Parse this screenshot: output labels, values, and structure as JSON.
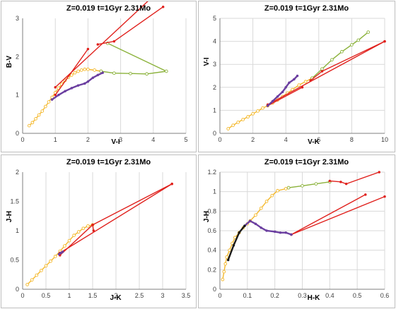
{
  "colors": {
    "grid": "#d9d9d9",
    "axis": "#7f7f7f",
    "red": "#e0211d",
    "green": "#8bb23b",
    "yellow": "#f4b82b",
    "purple": "#6b3fa0",
    "black": "#1a1a1a"
  },
  "chart_data": [
    {
      "type": "scatter",
      "title": "Z=0.019  t=1Gyr  2.31Mo",
      "xlabel": "V-I",
      "ylabel": "B-V",
      "xlim": [
        0,
        5
      ],
      "ylim": [
        0,
        3
      ],
      "xticks": [
        0,
        1,
        2,
        3,
        4,
        5
      ],
      "yticks": [
        0,
        1,
        2,
        3
      ],
      "grid": "vertical",
      "series": [
        {
          "color": "yellow",
          "markers": true,
          "points": [
            [
              0.2,
              0.2
            ],
            [
              0.3,
              0.28
            ],
            [
              0.4,
              0.38
            ],
            [
              0.5,
              0.48
            ],
            [
              0.6,
              0.58
            ],
            [
              0.7,
              0.7
            ],
            [
              0.8,
              0.82
            ],
            [
              0.9,
              0.94
            ],
            [
              1.0,
              1.06
            ],
            [
              1.1,
              1.18
            ],
            [
              1.2,
              1.28
            ],
            [
              1.3,
              1.38
            ],
            [
              1.4,
              1.46
            ],
            [
              1.5,
              1.52
            ],
            [
              1.6,
              1.58
            ],
            [
              1.7,
              1.62
            ],
            [
              1.8,
              1.65
            ],
            [
              1.9,
              1.67
            ],
            [
              2.0,
              1.67
            ],
            [
              2.2,
              1.65
            ],
            [
              2.4,
              1.62
            ]
          ]
        },
        {
          "color": "green",
          "markers": true,
          "points": [
            [
              2.4,
              1.62
            ],
            [
              2.8,
              1.57
            ],
            [
              3.3,
              1.56
            ],
            [
              3.8,
              1.55
            ],
            [
              4.4,
              1.62
            ],
            [
              2.6,
              2.35
            ]
          ]
        },
        {
          "color": "red",
          "markers": false,
          "points": [
            [
              1.0,
              1.0
            ],
            [
              2.0,
              2.2
            ]
          ]
        },
        {
          "color": "red",
          "markers": false,
          "points": [
            [
              1.0,
              1.2
            ],
            [
              3.9,
              3.5
            ]
          ]
        },
        {
          "color": "red",
          "markers": false,
          "points": [
            [
              2.3,
              2.32
            ],
            [
              2.8,
              2.4
            ],
            [
              4.3,
              3.3
            ]
          ]
        },
        {
          "color": "purple",
          "markers": false,
          "points": [
            [
              0.9,
              0.88
            ],
            [
              1.1,
              1.0
            ],
            [
              1.3,
              1.1
            ],
            [
              1.5,
              1.18
            ],
            [
              1.7,
              1.25
            ],
            [
              1.9,
              1.3
            ],
            [
              2.0,
              1.35
            ],
            [
              2.15,
              1.45
            ],
            [
              2.3,
              1.52
            ],
            [
              2.45,
              1.58
            ]
          ]
        }
      ]
    },
    {
      "type": "scatter",
      "title": "Z=0.019  t=1Gyr  2.31Mo",
      "xlabel": "V-K",
      "ylabel": "V-I",
      "xlim": [
        0,
        10
      ],
      "ylim": [
        0,
        5
      ],
      "xticks": [
        0,
        2,
        4,
        6,
        8,
        10
      ],
      "yticks": [
        0,
        1,
        2,
        3,
        4,
        5
      ],
      "grid": "both",
      "series": [
        {
          "color": "yellow",
          "markers": true,
          "points": [
            [
              0.5,
              0.2
            ],
            [
              0.8,
              0.35
            ],
            [
              1.1,
              0.48
            ],
            [
              1.4,
              0.6
            ],
            [
              1.7,
              0.72
            ],
            [
              2.0,
              0.85
            ],
            [
              2.3,
              0.97
            ],
            [
              2.6,
              1.1
            ],
            [
              2.9,
              1.2
            ],
            [
              3.2,
              1.32
            ],
            [
              3.5,
              1.45
            ],
            [
              3.8,
              1.6
            ],
            [
              4.1,
              1.75
            ],
            [
              4.4,
              1.9
            ],
            [
              4.8,
              2.1
            ],
            [
              5.2,
              2.25
            ],
            [
              5.6,
              2.4
            ]
          ]
        },
        {
          "color": "green",
          "markers": true,
          "points": [
            [
              5.6,
              2.4
            ],
            [
              6.2,
              2.8
            ],
            [
              6.8,
              3.2
            ],
            [
              7.4,
              3.55
            ],
            [
              8.0,
              3.85
            ],
            [
              8.4,
              4.05
            ],
            [
              9.0,
              4.4
            ]
          ]
        },
        {
          "color": "red",
          "markers": false,
          "points": [
            [
              2.9,
              1.2
            ],
            [
              5.0,
              2.0
            ]
          ]
        },
        {
          "color": "red",
          "markers": false,
          "points": [
            [
              2.9,
              1.25
            ],
            [
              10.0,
              4.0
            ]
          ]
        },
        {
          "color": "red",
          "markers": false,
          "points": [
            [
              5.5,
              2.3
            ],
            [
              6.2,
              2.7
            ],
            [
              10.0,
              4.0
            ]
          ]
        },
        {
          "color": "purple",
          "markers": false,
          "points": [
            [
              2.9,
              1.2
            ],
            [
              3.2,
              1.4
            ],
            [
              3.5,
              1.6
            ],
            [
              3.8,
              1.8
            ],
            [
              4.0,
              2.0
            ],
            [
              4.2,
              2.2
            ],
            [
              4.5,
              2.35
            ],
            [
              4.7,
              2.5
            ]
          ]
        }
      ]
    },
    {
      "type": "scatter",
      "title": "Z=0.019  t=1Gyr  2.31Mo",
      "xlabel": "J-K",
      "ylabel": "J-H",
      "xlim": [
        0,
        3.5
      ],
      "ylim": [
        0,
        2
      ],
      "xticks": [
        0,
        0.5,
        1,
        1.5,
        2,
        2.5,
        3,
        3.5
      ],
      "yticks": [
        0,
        0.5,
        1,
        1.5,
        2
      ],
      "grid": "vertical",
      "series": [
        {
          "color": "yellow",
          "markers": true,
          "points": [
            [
              0.1,
              0.08
            ],
            [
              0.2,
              0.16
            ],
            [
              0.3,
              0.24
            ],
            [
              0.4,
              0.32
            ],
            [
              0.5,
              0.4
            ],
            [
              0.6,
              0.48
            ],
            [
              0.7,
              0.56
            ],
            [
              0.8,
              0.65
            ],
            [
              0.9,
              0.74
            ],
            [
              1.0,
              0.83
            ],
            [
              1.1,
              0.92
            ],
            [
              1.2,
              0.98
            ],
            [
              1.3,
              1.04
            ],
            [
              1.4,
              1.08
            ],
            [
              1.5,
              1.1
            ]
          ]
        },
        {
          "color": "red",
          "markers": false,
          "points": [
            [
              0.8,
              0.58
            ],
            [
              1.5,
              1.1
            ],
            [
              1.52,
              1.0
            ]
          ]
        },
        {
          "color": "red",
          "markers": false,
          "points": [
            [
              0.8,
              0.62
            ],
            [
              3.2,
              1.8
            ]
          ]
        },
        {
          "color": "red",
          "markers": false,
          "points": [
            [
              1.5,
              1.1
            ],
            [
              3.2,
              1.8
            ]
          ]
        },
        {
          "color": "purple",
          "markers": false,
          "points": [
            [
              0.78,
              0.6
            ],
            [
              0.82,
              0.62
            ],
            [
              0.86,
              0.64
            ]
          ]
        }
      ]
    },
    {
      "type": "scatter",
      "title": "Z=0.019  t=1Gyr  2.31Mo",
      "xlabel": "H-K",
      "ylabel": "J-H",
      "xlim": [
        0,
        0.6
      ],
      "ylim": [
        0,
        1.2
      ],
      "xticks": [
        0,
        0.1,
        0.2,
        0.3,
        0.4,
        0.5,
        0.6
      ],
      "yticks": [
        0,
        0.2,
        0.4,
        0.6,
        0.8,
        1,
        1.2
      ],
      "grid": "both",
      "series": [
        {
          "color": "yellow",
          "markers": true,
          "points": [
            [
              0.01,
              0.1
            ],
            [
              0.015,
              0.18
            ],
            [
              0.02,
              0.26
            ],
            [
              0.025,
              0.33
            ],
            [
              0.035,
              0.4
            ],
            [
              0.045,
              0.47
            ],
            [
              0.055,
              0.53
            ],
            [
              0.07,
              0.58
            ],
            [
              0.085,
              0.63
            ],
            [
              0.1,
              0.67
            ],
            [
              0.11,
              0.7
            ],
            [
              0.13,
              0.76
            ],
            [
              0.15,
              0.83
            ],
            [
              0.17,
              0.9
            ],
            [
              0.19,
              0.96
            ],
            [
              0.21,
              1.01
            ],
            [
              0.24,
              1.03
            ],
            [
              0.25,
              1.04
            ]
          ]
        },
        {
          "color": "green",
          "markers": true,
          "points": [
            [
              0.25,
              1.04
            ],
            [
              0.3,
              1.06
            ],
            [
              0.35,
              1.08
            ],
            [
              0.4,
              1.1
            ]
          ]
        },
        {
          "color": "red",
          "markers": false,
          "points": [
            [
              0.4,
              1.11
            ],
            [
              0.44,
              1.1
            ],
            [
              0.46,
              1.08
            ],
            [
              0.58,
              1.2
            ]
          ]
        },
        {
          "color": "red",
          "markers": false,
          "points": [
            [
              0.26,
              0.56
            ],
            [
              0.53,
              0.97
            ]
          ]
        },
        {
          "color": "red",
          "markers": false,
          "points": [
            [
              0.26,
              0.56
            ],
            [
              0.6,
              0.95
            ]
          ]
        },
        {
          "color": "purple",
          "markers": false,
          "points": [
            [
              0.09,
              0.65
            ],
            [
              0.11,
              0.7
            ],
            [
              0.13,
              0.67
            ],
            [
              0.15,
              0.63
            ],
            [
              0.17,
              0.6
            ],
            [
              0.2,
              0.59
            ],
            [
              0.22,
              0.58
            ],
            [
              0.24,
              0.58
            ],
            [
              0.26,
              0.56
            ]
          ]
        },
        {
          "color": "black",
          "markers": false,
          "points": [
            [
              0.03,
              0.3
            ],
            [
              0.05,
              0.45
            ],
            [
              0.07,
              0.58
            ],
            [
              0.09,
              0.65
            ]
          ]
        }
      ]
    }
  ]
}
